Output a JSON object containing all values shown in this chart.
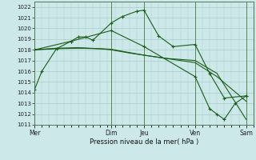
{
  "bg_color": "#cce8e8",
  "grid_color": "#aacccc",
  "line_color": "#1a5c1a",
  "xlabel": "Pression niveau de la mer( hPa )",
  "ylim": [
    1011,
    1022.5
  ],
  "yticks": [
    1011,
    1012,
    1013,
    1014,
    1015,
    1016,
    1017,
    1018,
    1019,
    1020,
    1021,
    1022
  ],
  "x_day_labels": [
    "Mer",
    "Dim",
    "Jeu",
    "Ven",
    "Sam"
  ],
  "x_day_positions": [
    0,
    10.5,
    15,
    22,
    29
  ],
  "xlim": [
    0,
    30
  ],
  "line1_marked": {
    "x": [
      0,
      1,
      3,
      5,
      6,
      7,
      8,
      10.5,
      12,
      14,
      15,
      17,
      19,
      22,
      24,
      26,
      29
    ],
    "y": [
      1014.3,
      1016.0,
      1018.1,
      1018.8,
      1019.2,
      1019.2,
      1018.9,
      1020.5,
      1021.1,
      1021.6,
      1021.7,
      1019.3,
      1018.3,
      1018.5,
      1015.8,
      1013.5,
      1013.7
    ]
  },
  "line2_plain": {
    "x": [
      0,
      3,
      6,
      9,
      10.5,
      13,
      15,
      18,
      22,
      25,
      29
    ],
    "y": [
      1018.0,
      1018.1,
      1018.15,
      1018.1,
      1018.0,
      1017.7,
      1017.5,
      1017.2,
      1017.0,
      1015.8,
      1011.5
    ]
  },
  "line3_plain": {
    "x": [
      0,
      3,
      6,
      10.5,
      15,
      18,
      22,
      25,
      29
    ],
    "y": [
      1018.0,
      1018.15,
      1018.2,
      1018.05,
      1017.5,
      1017.2,
      1016.8,
      1015.5,
      1013.2
    ]
  },
  "line4_marked": {
    "x": [
      0,
      5,
      10.5,
      15,
      22,
      24,
      25,
      26,
      27.5,
      29
    ],
    "y": [
      1018.0,
      1018.8,
      1019.8,
      1018.3,
      1015.5,
      1012.5,
      1012.0,
      1011.5,
      1013.0,
      1013.7
    ]
  }
}
